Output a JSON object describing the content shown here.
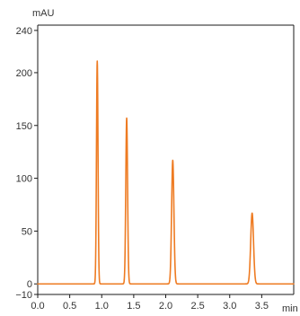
{
  "chart_data": {
    "type": "line",
    "title": "",
    "xlabel": "min",
    "ylabel": "mAU",
    "xlim": [
      0,
      4.0
    ],
    "ylim": [
      -10,
      245
    ],
    "x_ticks": [
      0.0,
      0.5,
      1.0,
      1.5,
      2.0,
      2.5,
      3.0,
      3.5
    ],
    "x_tick_labels": [
      "0.0",
      "0.5",
      "1.0",
      "1.5",
      "2.0",
      "2.5",
      "3.0",
      "3.5"
    ],
    "y_ticks": [
      -10,
      0,
      50,
      100,
      150,
      200,
      240
    ],
    "y_tick_labels": [
      "−10",
      "0",
      "50",
      "100",
      "150",
      "200",
      "240"
    ],
    "grid": false,
    "legend": "none",
    "series": [
      {
        "color": "#ee7b22",
        "baseline": 0,
        "peaks": [
          {
            "retention_time": 0.93,
            "height": 211,
            "width": 0.012
          },
          {
            "retention_time": 1.39,
            "height": 157,
            "width": 0.014
          },
          {
            "retention_time": 2.11,
            "height": 117,
            "width": 0.018
          },
          {
            "retention_time": 3.35,
            "height": 67,
            "width": 0.022
          }
        ]
      }
    ]
  }
}
